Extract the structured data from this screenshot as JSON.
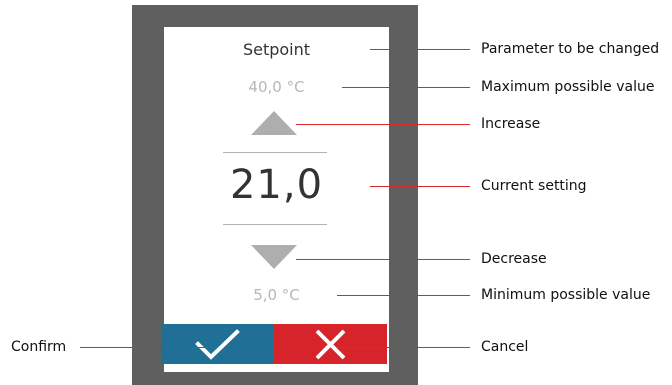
{
  "screen": {
    "parameter_title": "Setpoint",
    "max_value": "40,0 °C",
    "current_value": "21,0",
    "min_value": "5,0 °C",
    "increase_icon": "triangle-up",
    "decrease_icon": "triangle-down",
    "confirm_icon": "checkmark",
    "cancel_icon": "x-mark"
  },
  "callouts": {
    "parameter": "Parameter to be changed",
    "max": "Maximum possible value",
    "increase": "Increase",
    "current": "Current setting",
    "decrease": "Decrease",
    "min": "Minimum possible value",
    "confirm": "Confirm",
    "cancel": "Cancel"
  },
  "colors": {
    "frame": "#5f5f5f",
    "confirm_button": "#1f6f96",
    "cancel_button": "#d7242a",
    "callout_line": "#d72a2a",
    "arrow": "#aeaeae"
  }
}
